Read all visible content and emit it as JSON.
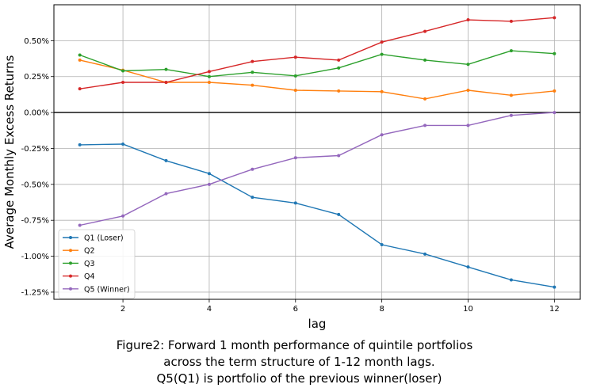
{
  "chart_data": {
    "type": "line",
    "xlabel": "lag",
    "ylabel": "Average Monthly Excess Returns",
    "xlim": [
      0.4,
      12.6
    ],
    "ylim": [
      -1.3,
      0.75
    ],
    "xticks": [
      2,
      4,
      6,
      8,
      10,
      12
    ],
    "yticks": [
      -1.25,
      -1.0,
      -0.75,
      -0.5,
      -0.25,
      0.0,
      0.25,
      0.5
    ],
    "ytick_labels": [
      "-1.25%",
      "-1.00%",
      "-0.75%",
      "-0.50%",
      "-0.25%",
      "0.00%",
      "0.25%",
      "0.50%"
    ],
    "grid": true,
    "legend_position": "lower-left",
    "x": [
      1,
      2,
      3,
      4,
      5,
      6,
      7,
      8,
      9,
      10,
      11,
      12
    ],
    "series": [
      {
        "name": "Q1 (Loser)",
        "color": "#1f77b4",
        "values": [
          -0.225,
          -0.22,
          -0.335,
          -0.425,
          -0.59,
          -0.63,
          -0.71,
          -0.92,
          -0.985,
          -1.075,
          -1.165,
          -1.215
        ]
      },
      {
        "name": "Q2",
        "color": "#ff7f0e",
        "values": [
          0.365,
          0.295,
          0.21,
          0.21,
          0.19,
          0.155,
          0.15,
          0.145,
          0.095,
          0.155,
          0.12,
          0.15
        ]
      },
      {
        "name": "Q3",
        "color": "#2ca02c",
        "values": [
          0.4,
          0.29,
          0.3,
          0.25,
          0.28,
          0.255,
          0.31,
          0.405,
          0.365,
          0.335,
          0.43,
          0.41
        ]
      },
      {
        "name": "Q4",
        "color": "#d62728",
        "values": [
          0.165,
          0.21,
          0.21,
          0.285,
          0.355,
          0.385,
          0.365,
          0.49,
          0.565,
          0.645,
          0.635,
          0.66
        ]
      },
      {
        "name": "Q5 (Winner)",
        "color": "#9467bd",
        "values": [
          -0.785,
          -0.72,
          -0.565,
          -0.5,
          -0.395,
          -0.315,
          -0.3,
          -0.155,
          -0.09,
          -0.09,
          -0.02,
          0.0
        ]
      }
    ]
  },
  "caption": {
    "line1": "Figure2: Forward 1 month performance of quintile portfolios",
    "line2": "across the term structure of 1-12 month lags.",
    "line3": "Q5(Q1) is portfolio of the previous winner(loser)"
  }
}
